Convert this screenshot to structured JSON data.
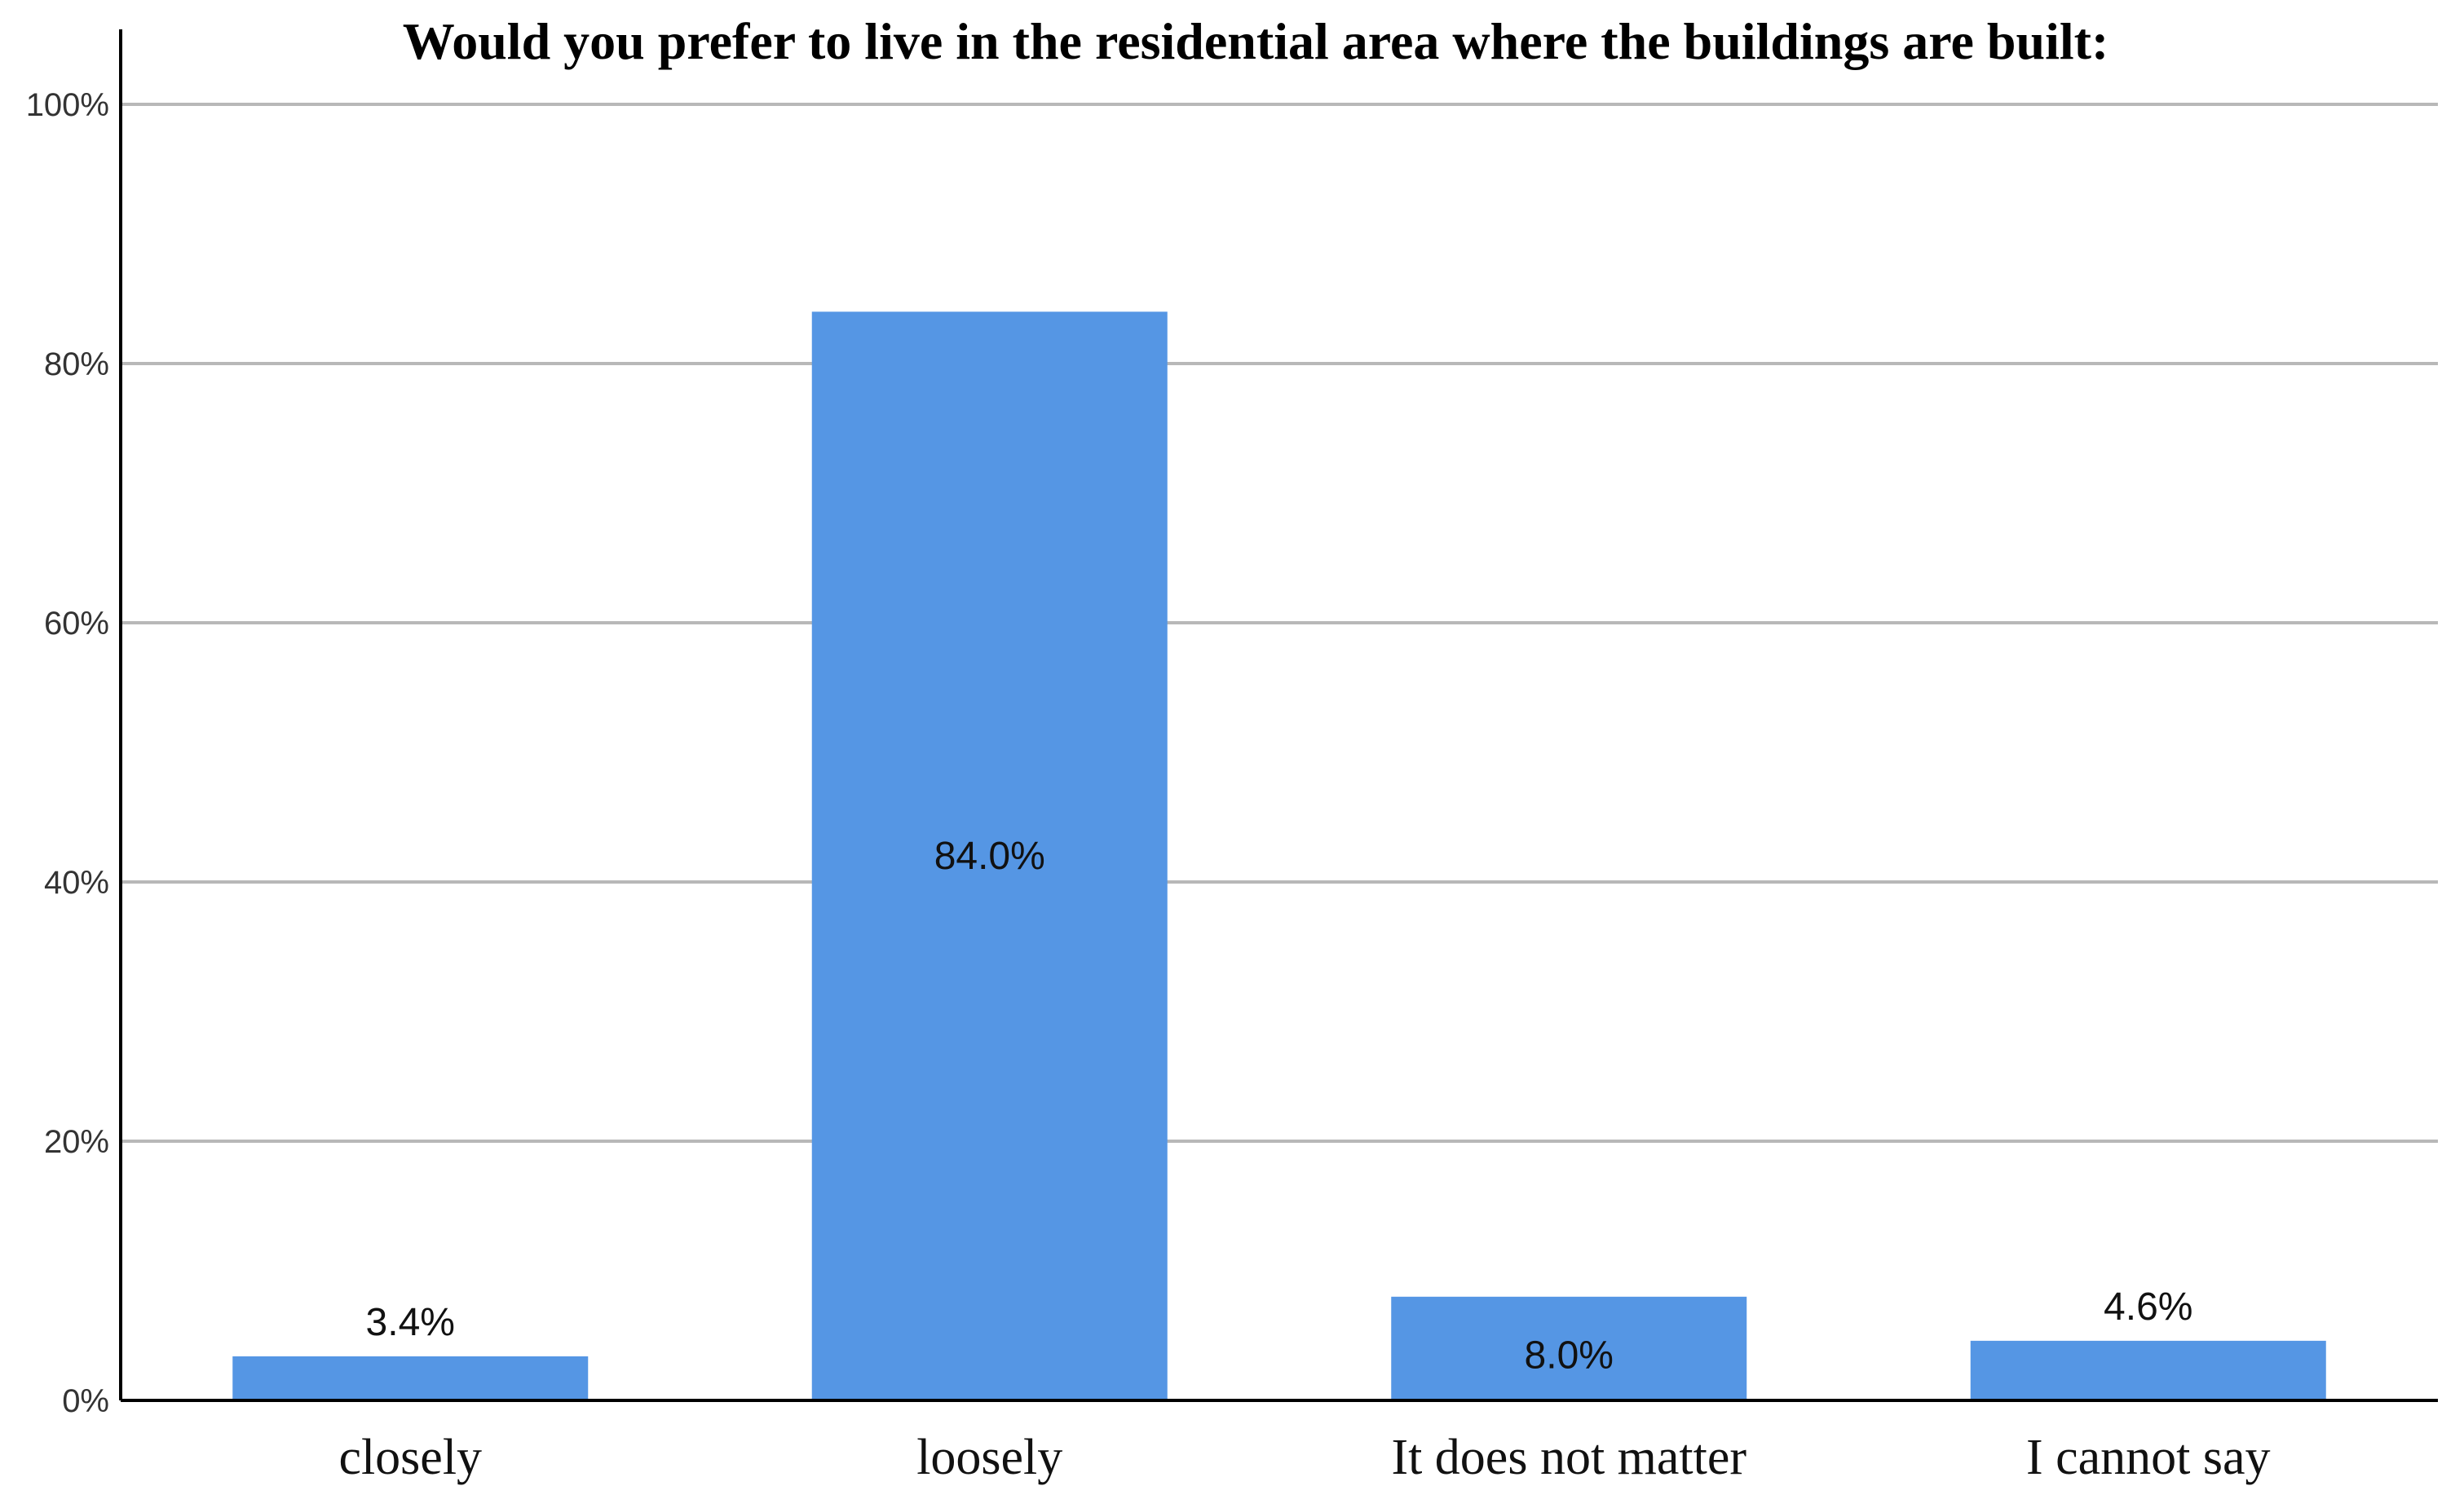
{
  "chart_data": {
    "type": "bar",
    "title": "Would you prefer to live in the residential area where the buildings are built:",
    "xlabel": "",
    "ylabel": "",
    "categories": [
      "closely",
      "loosely",
      "It does not matter",
      "I cannot say"
    ],
    "values": [
      3.4,
      84.0,
      8.0,
      4.6
    ],
    "value_labels": [
      "3.4%",
      "84.0%",
      "8.0%",
      "4.6%"
    ],
    "ylim": [
      0,
      100
    ],
    "yticks": [
      0,
      20,
      40,
      60,
      80,
      100
    ],
    "ytick_labels": [
      "0%",
      "20%",
      "40%",
      "60%",
      "80%",
      "100%"
    ],
    "grid": true,
    "legend": "none",
    "bar_color": "#5596e4"
  }
}
